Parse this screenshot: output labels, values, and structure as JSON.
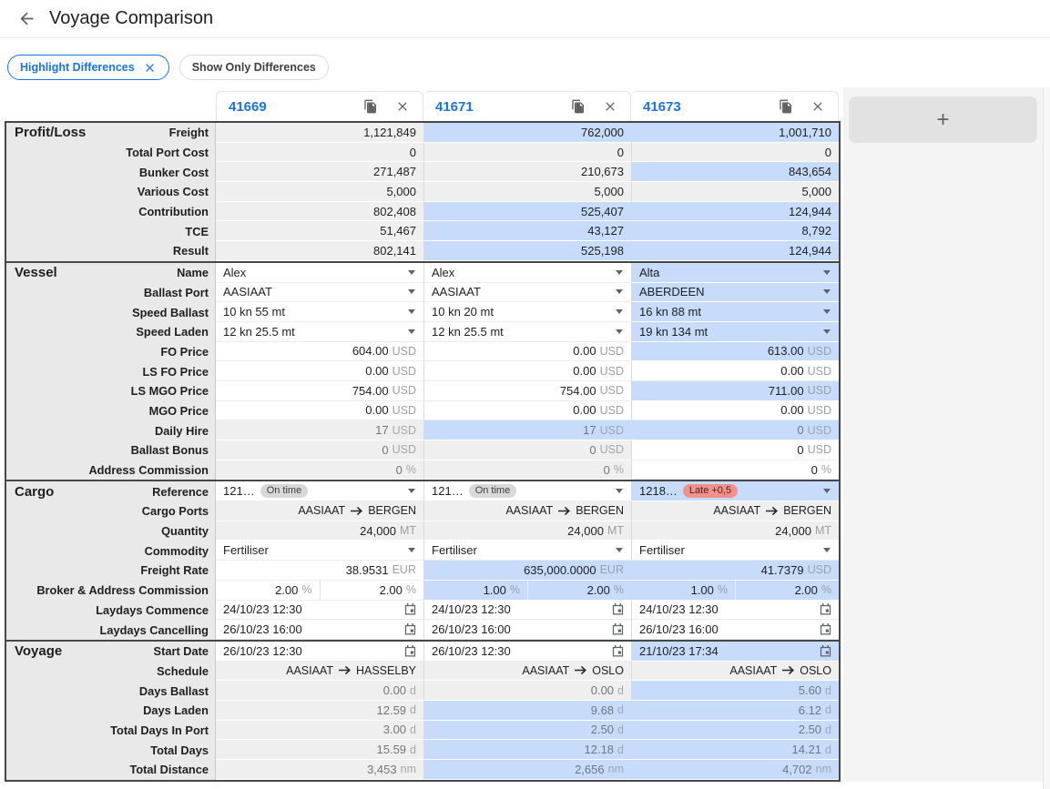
{
  "header": {
    "title": "Voyage Comparison"
  },
  "filters": {
    "highlight": {
      "label": "Highlight Differences",
      "active": true
    },
    "show_only": {
      "label": "Show Only Differences",
      "active": false
    }
  },
  "add_column": {
    "label": "+"
  },
  "colors": {
    "accent_blue": "#1a73e8",
    "diff_highlight": "#c7dbfa",
    "readonly_gray": "#efefef",
    "label_column": "#e9e9ea",
    "badge_ontime_bg": "#d8d8d8",
    "badge_late_bg": "#f2908b",
    "section_border": "#46474a"
  },
  "columns": [
    {
      "id": "41669"
    },
    {
      "id": "41671"
    },
    {
      "id": "41673"
    }
  ],
  "sections": [
    {
      "name": "Profit/Loss",
      "rows": [
        {
          "label": "Freight",
          "type": "num",
          "cells": [
            {
              "v": "1,121,849",
              "bg": "g"
            },
            {
              "v": "762,000",
              "bg": "b"
            },
            {
              "v": "1,001,710",
              "bg": "b"
            }
          ]
        },
        {
          "label": "Total Port Cost",
          "type": "num",
          "cells": [
            {
              "v": "0",
              "bg": "g"
            },
            {
              "v": "0",
              "bg": "g"
            },
            {
              "v": "0",
              "bg": "g"
            }
          ]
        },
        {
          "label": "Bunker Cost",
          "type": "num",
          "cells": [
            {
              "v": "271,487",
              "bg": "g"
            },
            {
              "v": "210,673",
              "bg": "g"
            },
            {
              "v": "843,654",
              "bg": "b"
            }
          ]
        },
        {
          "label": "Various Cost",
          "type": "num",
          "cells": [
            {
              "v": "5,000",
              "bg": "g"
            },
            {
              "v": "5,000",
              "bg": "g"
            },
            {
              "v": "5,000",
              "bg": "g"
            }
          ]
        },
        {
          "label": "Contribution",
          "type": "num",
          "cells": [
            {
              "v": "802,408",
              "bg": "g"
            },
            {
              "v": "525,407",
              "bg": "b"
            },
            {
              "v": "124,944",
              "bg": "b"
            }
          ]
        },
        {
          "label": "TCE",
          "type": "num",
          "cells": [
            {
              "v": "51,467",
              "bg": "g"
            },
            {
              "v": "43,127",
              "bg": "b"
            },
            {
              "v": "8,792",
              "bg": "b"
            }
          ]
        },
        {
          "label": "Result",
          "type": "num",
          "cells": [
            {
              "v": "802,141",
              "bg": "g"
            },
            {
              "v": "525,198",
              "bg": "b"
            },
            {
              "v": "124,944",
              "bg": "b"
            }
          ]
        }
      ]
    },
    {
      "name": "Vessel",
      "rows": [
        {
          "label": "Name",
          "type": "select",
          "edit": true,
          "cells": [
            {
              "v": "Alex",
              "bg": "w"
            },
            {
              "v": "Alex",
              "bg": "w"
            },
            {
              "v": "Alta",
              "bg": "b"
            }
          ]
        },
        {
          "label": "Ballast Port",
          "type": "select",
          "edit": true,
          "cells": [
            {
              "v": "AASIAAT",
              "bg": "w"
            },
            {
              "v": "AASIAAT",
              "bg": "w"
            },
            {
              "v": "ABERDEEN",
              "bg": "b"
            }
          ]
        },
        {
          "label": "Speed Ballast",
          "type": "select",
          "edit": true,
          "cells": [
            {
              "v": "10 kn 55 mt",
              "bg": "w"
            },
            {
              "v": "10 kn 20 mt",
              "bg": "w"
            },
            {
              "v": "16 kn 88 mt",
              "bg": "b"
            }
          ]
        },
        {
          "label": "Speed Laden",
          "type": "select",
          "edit": true,
          "cells": [
            {
              "v": "12 kn 25.5 mt",
              "bg": "w"
            },
            {
              "v": "12 kn 25.5 mt",
              "bg": "w"
            },
            {
              "v": "19 kn 134 mt",
              "bg": "b"
            }
          ]
        },
        {
          "label": "FO Price",
          "type": "num",
          "unit": "USD",
          "edit": true,
          "cells": [
            {
              "v": "604.00",
              "bg": "w"
            },
            {
              "v": "0.00",
              "bg": "w"
            },
            {
              "v": "613.00",
              "bg": "b"
            }
          ]
        },
        {
          "label": "LS FO Price",
          "type": "num",
          "unit": "USD",
          "edit": true,
          "cells": [
            {
              "v": "0.00",
              "bg": "w"
            },
            {
              "v": "0.00",
              "bg": "w"
            },
            {
              "v": "0.00",
              "bg": "w"
            }
          ]
        },
        {
          "label": "LS MGO Price",
          "type": "num",
          "unit": "USD",
          "edit": true,
          "cells": [
            {
              "v": "754.00",
              "bg": "w"
            },
            {
              "v": "754.00",
              "bg": "w"
            },
            {
              "v": "711.00",
              "bg": "b"
            }
          ]
        },
        {
          "label": "MGO Price",
          "type": "num",
          "unit": "USD",
          "edit": true,
          "cells": [
            {
              "v": "0.00",
              "bg": "w"
            },
            {
              "v": "0.00",
              "bg": "w"
            },
            {
              "v": "0.00",
              "bg": "w"
            }
          ]
        },
        {
          "label": "Daily Hire",
          "type": "num",
          "unit": "USD",
          "cells": [
            {
              "v": "17",
              "bg": "g",
              "tn": "g"
            },
            {
              "v": "17",
              "bg": "b",
              "tn": "g"
            },
            {
              "v": "0",
              "bg": "b",
              "tn": "g"
            }
          ]
        },
        {
          "label": "Ballast Bonus",
          "type": "num",
          "unit": "USD",
          "cells": [
            {
              "v": "0",
              "bg": "g",
              "tn": "g"
            },
            {
              "v": "0",
              "bg": "g",
              "tn": "g"
            },
            {
              "v": "0",
              "bg": "w",
              "ed": true
            }
          ]
        },
        {
          "label": "Address Commission",
          "type": "num",
          "unit": "%",
          "cells": [
            {
              "v": "0",
              "bg": "g",
              "tn": "g"
            },
            {
              "v": "0",
              "bg": "g",
              "tn": "g"
            },
            {
              "v": "0",
              "bg": "w",
              "ed": true
            }
          ]
        }
      ]
    },
    {
      "name": "Cargo",
      "rows": [
        {
          "label": "Reference",
          "type": "ref",
          "edit": true,
          "cells": [
            {
              "v": "121…",
              "bg": "w",
              "badge": {
                "t": "On time",
                "k": "gray"
              }
            },
            {
              "v": "121…",
              "bg": "w",
              "badge": {
                "t": "On time",
                "k": "gray"
              }
            },
            {
              "v": "1218…",
              "bg": "b",
              "badge": {
                "t": "Late +0,5",
                "k": "red"
              }
            }
          ]
        },
        {
          "label": "Cargo Ports",
          "type": "route",
          "cells": [
            {
              "v": "AASIAAT",
              "v2": "BERGEN",
              "bg": "g"
            },
            {
              "v": "AASIAAT",
              "v2": "BERGEN",
              "bg": "g"
            },
            {
              "v": "AASIAAT",
              "v2": "BERGEN",
              "bg": "g"
            }
          ]
        },
        {
          "label": "Quantity",
          "type": "num",
          "unit": "MT",
          "cells": [
            {
              "v": "24,000",
              "bg": "g"
            },
            {
              "v": "24,000",
              "bg": "g"
            },
            {
              "v": "24,000",
              "bg": "g"
            }
          ]
        },
        {
          "label": "Commodity",
          "type": "select",
          "edit": true,
          "cells": [
            {
              "v": "Fertiliser",
              "bg": "w"
            },
            {
              "v": "Fertiliser",
              "bg": "w"
            },
            {
              "v": "Fertiliser",
              "bg": "w"
            }
          ]
        },
        {
          "label": "Freight Rate",
          "type": "num",
          "edit": true,
          "cells": [
            {
              "v": "38.9531",
              "u": "EUR",
              "bg": "w"
            },
            {
              "v": "635,000.0000",
              "u": "EUR",
              "bg": "b"
            },
            {
              "v": "41.7379",
              "u": "USD",
              "bg": "b"
            }
          ]
        },
        {
          "label": "Broker & Address Commission",
          "type": "dual",
          "unit": "%",
          "edit": true,
          "cells": [
            {
              "v": "2.00",
              "v2": "2.00",
              "bg": "w"
            },
            {
              "v": "1.00",
              "v2": "2.00",
              "bg": "b"
            },
            {
              "v": "1.00",
              "v2": "2.00",
              "bg": "b"
            }
          ]
        },
        {
          "label": "Laydays Commence",
          "type": "date",
          "edit": true,
          "cells": [
            {
              "v": "24/10/23 12:30",
              "bg": "w"
            },
            {
              "v": "24/10/23 12:30",
              "bg": "w"
            },
            {
              "v": "24/10/23 12:30",
              "bg": "w"
            }
          ]
        },
        {
          "label": "Laydays Cancelling",
          "type": "date",
          "edit": true,
          "cells": [
            {
              "v": "26/10/23 16:00",
              "bg": "w"
            },
            {
              "v": "26/10/23 16:00",
              "bg": "w"
            },
            {
              "v": "26/10/23 16:00",
              "bg": "w"
            }
          ]
        }
      ]
    },
    {
      "name": "Voyage",
      "rows": [
        {
          "label": "Start Date",
          "type": "date",
          "edit": true,
          "cells": [
            {
              "v": "26/10/23 12:30",
              "bg": "w"
            },
            {
              "v": "26/10/23 12:30",
              "bg": "w"
            },
            {
              "v": "21/10/23 17:34",
              "bg": "b"
            }
          ]
        },
        {
          "label": "Schedule",
          "type": "route",
          "cells": [
            {
              "v": "AASIAAT",
              "v2": "HASSELBY",
              "bg": "g"
            },
            {
              "v": "AASIAAT",
              "v2": "OSLO",
              "bg": "g"
            },
            {
              "v": "AASIAAT",
              "v2": "OSLO",
              "bg": "g"
            }
          ]
        },
        {
          "label": "Days Ballast",
          "type": "num",
          "unit": "d",
          "cells": [
            {
              "v": "0.00",
              "bg": "g",
              "tn": "g"
            },
            {
              "v": "0.00",
              "bg": "g",
              "tn": "g"
            },
            {
              "v": "5.60",
              "bg": "b",
              "tn": "g"
            }
          ]
        },
        {
          "label": "Days Laden",
          "type": "num",
          "unit": "d",
          "cells": [
            {
              "v": "12.59",
              "bg": "g",
              "tn": "g"
            },
            {
              "v": "9.68",
              "bg": "b",
              "tn": "g"
            },
            {
              "v": "6.12",
              "bg": "b",
              "tn": "g"
            }
          ]
        },
        {
          "label": "Total Days In Port",
          "type": "num",
          "unit": "d",
          "cells": [
            {
              "v": "3.00",
              "bg": "g",
              "tn": "g"
            },
            {
              "v": "2.50",
              "bg": "b",
              "tn": "g"
            },
            {
              "v": "2.50",
              "bg": "b",
              "tn": "g"
            }
          ]
        },
        {
          "label": "Total Days",
          "type": "num",
          "unit": "d",
          "cells": [
            {
              "v": "15.59",
              "bg": "g",
              "tn": "g"
            },
            {
              "v": "12.18",
              "bg": "b",
              "tn": "g"
            },
            {
              "v": "14.21",
              "bg": "b",
              "tn": "g"
            }
          ]
        },
        {
          "label": "Total Distance",
          "type": "num",
          "unit": "nm",
          "cells": [
            {
              "v": "3,453",
              "bg": "g",
              "tn": "g"
            },
            {
              "v": "2,656",
              "bg": "b",
              "tn": "g"
            },
            {
              "v": "4,702",
              "bg": "b",
              "tn": "g"
            }
          ]
        }
      ]
    }
  ]
}
